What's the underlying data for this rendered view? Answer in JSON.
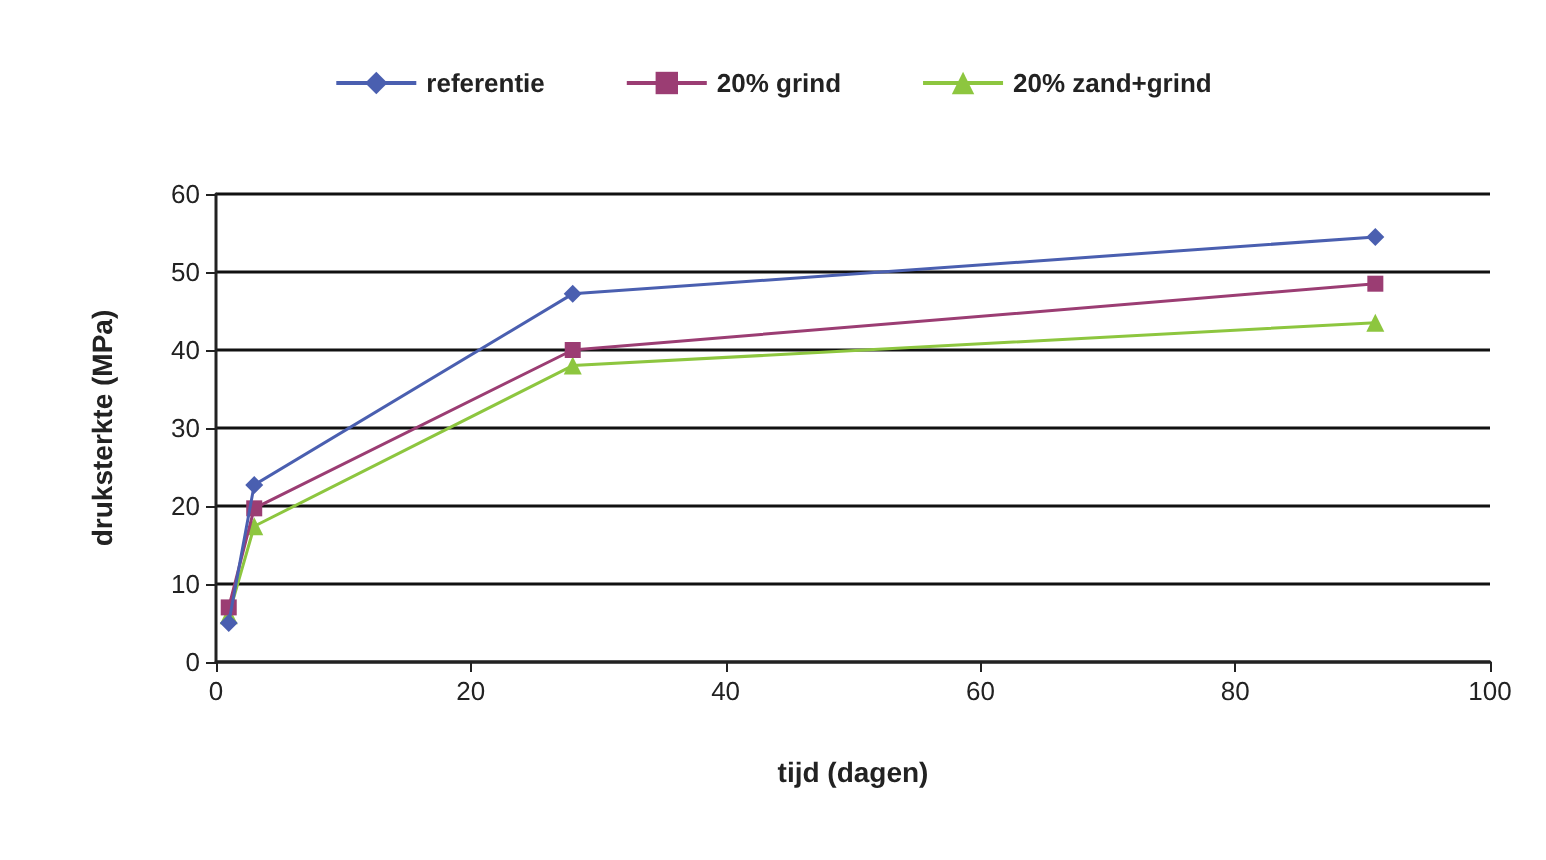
{
  "chart_data": {
    "type": "line",
    "xlabel": "tijd (dagen)",
    "ylabel": "druksterkte (MPa)",
    "x": [
      1,
      3,
      28,
      91
    ],
    "series": [
      {
        "name": "referentie",
        "color": "#4a5fb0",
        "marker": "diamond",
        "values": [
          5,
          22.7,
          47.2,
          54.5
        ]
      },
      {
        "name": "20% grind",
        "color": "#9b3d73",
        "marker": "square",
        "values": [
          7,
          19.7,
          40,
          48.5
        ]
      },
      {
        "name": "20% zand+grind",
        "color": "#8dc63f",
        "marker": "triangle",
        "values": [
          6,
          17.4,
          38,
          43.5
        ]
      }
    ],
    "xlim": [
      0,
      100
    ],
    "xticks": [
      0,
      20,
      40,
      60,
      80,
      100
    ],
    "ylim": [
      0,
      60
    ],
    "yticks": [
      0,
      10,
      20,
      30,
      40,
      50,
      60
    ],
    "grid": "y",
    "legend": "top"
  }
}
